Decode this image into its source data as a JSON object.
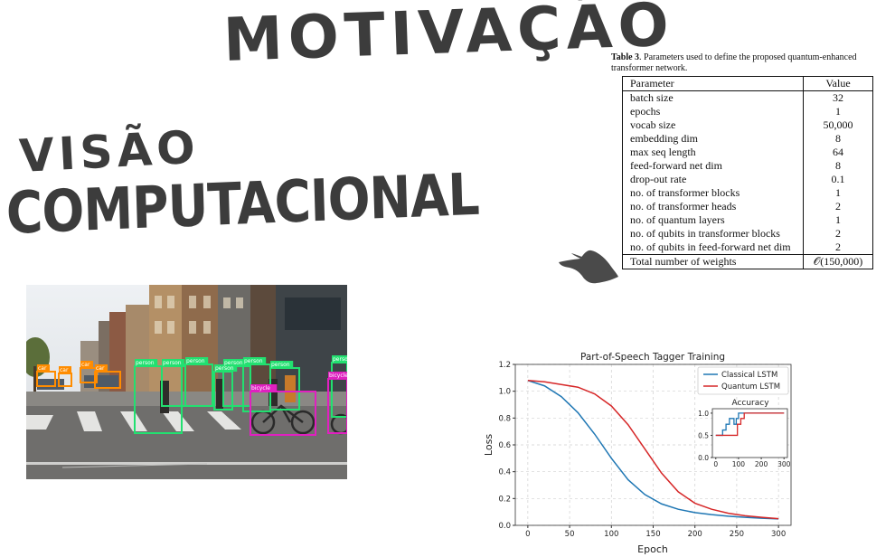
{
  "slide": {
    "title": "MOTIVAÇÃO",
    "subtitle_line1": "VISÃO",
    "subtitle_line2": "COMPUTACIONAL"
  },
  "params_table": {
    "caption_label": "Table 3",
    "caption_text": ". Parameters used to define the proposed quantum-enhanced transformer network.",
    "header": [
      "Parameter",
      "Value"
    ],
    "rows": [
      {
        "param": "batch size",
        "value": "32"
      },
      {
        "param": "epochs",
        "value": "1"
      },
      {
        "param": "vocab size",
        "value": "50,000"
      },
      {
        "param": "embedding dim",
        "value": "8"
      },
      {
        "param": "max seq length",
        "value": "64"
      },
      {
        "param": "feed-forward net dim",
        "value": "8"
      },
      {
        "param": "drop-out rate",
        "value": "0.1"
      },
      {
        "param": "no. of transformer blocks",
        "value": "1"
      },
      {
        "param": "no. of transformer heads",
        "value": "2"
      },
      {
        "param": "no. of quantum layers",
        "value": "1"
      },
      {
        "param": "no. of qubits in transformer blocks",
        "value": "2"
      },
      {
        "param": "no. of qubits in feed-forward net dim",
        "value": "2"
      }
    ],
    "total": {
      "param": "Total number of weights",
      "value": "𝒪(150,000)"
    }
  },
  "detections": {
    "labels": {
      "car": "car",
      "person": "person",
      "bicycle": "bicycle"
    },
    "colors": {
      "car": "#ff8c00",
      "person": "#22e070",
      "bicycle": "#e020c0"
    }
  },
  "chart_data": {
    "type": "line",
    "title": "Part-of-Speech Tagger Training",
    "xlabel": "Epoch",
    "ylabel": "Loss",
    "xlim": [
      -15,
      315
    ],
    "ylim": [
      0.0,
      1.2
    ],
    "xticks": [
      0,
      50,
      100,
      150,
      200,
      250,
      300
    ],
    "yticks": [
      0.0,
      0.2,
      0.4,
      0.6,
      0.8,
      1.0,
      1.2
    ],
    "grid": true,
    "legend": "top-right",
    "series": [
      {
        "name": "Classical LSTM",
        "color": "#1f77b4",
        "x": [
          0,
          20,
          40,
          60,
          80,
          100,
          120,
          140,
          160,
          180,
          200,
          220,
          240,
          260,
          280,
          300
        ],
        "y": [
          1.08,
          1.04,
          0.96,
          0.84,
          0.68,
          0.5,
          0.34,
          0.23,
          0.16,
          0.12,
          0.095,
          0.08,
          0.068,
          0.06,
          0.053,
          0.048
        ]
      },
      {
        "name": "Quantum LSTM",
        "color": "#d62728",
        "x": [
          0,
          20,
          40,
          60,
          80,
          100,
          120,
          140,
          160,
          180,
          200,
          220,
          240,
          260,
          280,
          300
        ],
        "y": [
          1.08,
          1.07,
          1.05,
          1.03,
          0.98,
          0.89,
          0.75,
          0.57,
          0.39,
          0.25,
          0.165,
          0.12,
          0.09,
          0.072,
          0.06,
          0.05
        ]
      }
    ],
    "inset": {
      "title": "Accuracy",
      "xlim": [
        -15,
        315
      ],
      "ylim": [
        0.0,
        1.1
      ],
      "xticks": [
        0,
        100,
        200,
        300
      ],
      "yticks": [
        0.0,
        0.5,
        1.0
      ],
      "series": [
        {
          "name": "Classical LSTM",
          "color": "#1f77b4",
          "x": [
            0,
            30,
            30,
            45,
            45,
            60,
            60,
            80,
            80,
            90,
            90,
            100,
            100,
            300
          ],
          "y": [
            0.5,
            0.5,
            0.62,
            0.62,
            0.75,
            0.75,
            0.88,
            0.88,
            0.75,
            0.75,
            0.88,
            0.88,
            1.0,
            1.0
          ]
        },
        {
          "name": "Quantum LSTM",
          "color": "#d62728",
          "x": [
            0,
            70,
            70,
            95,
            95,
            110,
            110,
            125,
            125,
            300
          ],
          "y": [
            0.5,
            0.5,
            0.5,
            0.5,
            0.75,
            0.75,
            0.88,
            0.88,
            1.0,
            1.0
          ]
        }
      ]
    }
  }
}
